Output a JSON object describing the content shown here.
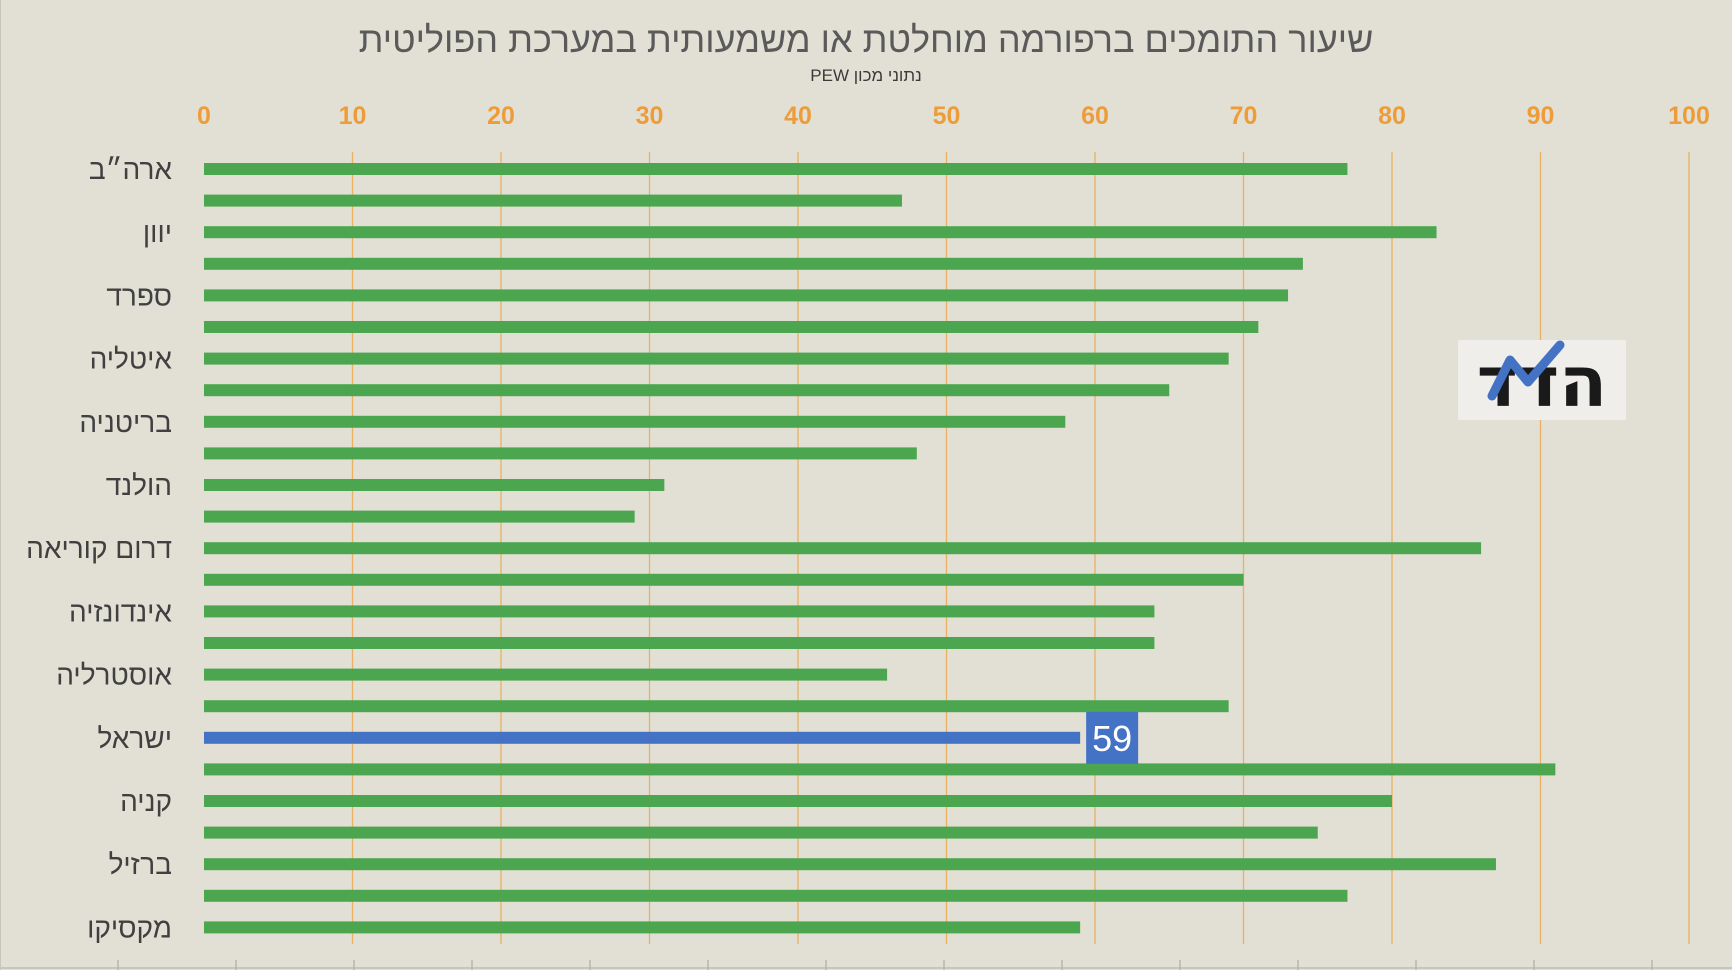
{
  "chart_data": {
    "type": "bar",
    "orientation": "horizontal",
    "title": "שיעור התומכים ברפורמה מוחלטת או משמעותית במערכת הפוליטית",
    "subtitle": "נתוני מכון PEW",
    "xlim": [
      0,
      100
    ],
    "x_ticks": [
      0,
      10,
      20,
      30,
      40,
      50,
      60,
      70,
      80,
      90,
      100
    ],
    "grid": true,
    "category_labels": [
      "ארה״ב",
      "",
      "יוון",
      "",
      "ספרד",
      "",
      "איטליה",
      "",
      "בריטניה",
      "",
      "הולנד",
      "",
      "דרום קוריאה",
      "",
      "אינדונזיה",
      "",
      "אוסטרליה",
      "",
      "ישראל",
      "",
      "קניה",
      "",
      "ברזיל",
      "",
      "מקסיקו"
    ],
    "values": [
      77,
      47,
      83,
      74,
      73,
      71,
      69,
      65,
      58,
      48,
      31,
      29,
      86,
      70,
      64,
      64,
      46,
      69,
      59,
      91,
      80,
      75,
      87,
      77,
      59
    ],
    "highlight_index": 18,
    "highlight_label": "59",
    "colors": {
      "background": "#e2e0d5",
      "bar": "#4ca64f",
      "highlight": "#4472c4",
      "tick_labels": "#ed9c39",
      "gridlines": "#ecb063",
      "logo_bg": "#efeeea",
      "logo_stroke": "#4472c4"
    }
  },
  "logo": {
    "text": "הדד",
    "icon": "hamadad-logo-n-stroke"
  }
}
